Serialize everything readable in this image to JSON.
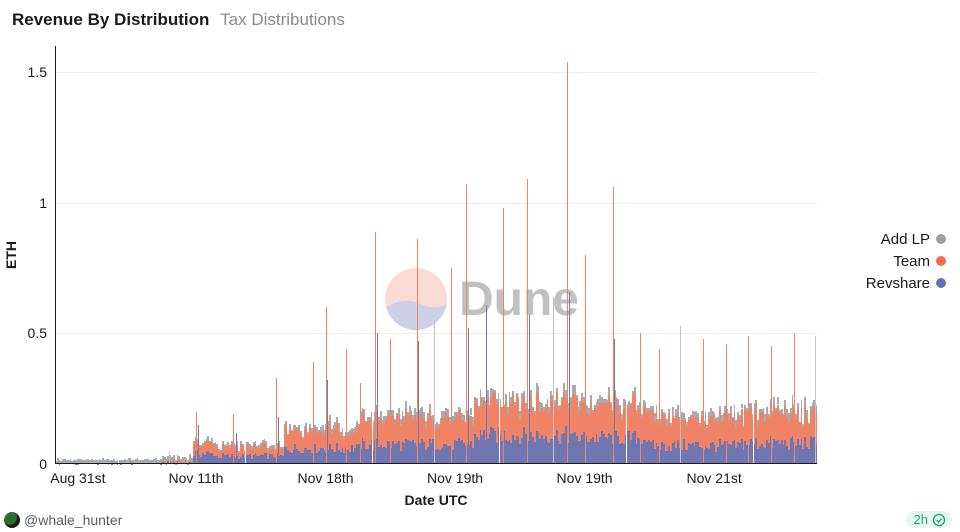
{
  "title_main": "Revenue By Distribution",
  "title_sub": "Tax Distributions",
  "y_label": "ETH",
  "x_label": "Date UTC",
  "footer_handle": "@whale_hunter",
  "stamp_text": "2h",
  "watermark_text": "Dune",
  "legend": [
    {
      "label": "Add LP",
      "color": "#9aa0a6"
    },
    {
      "label": "Team",
      "color": "#f36b4a"
    },
    {
      "label": "Revshare",
      "color": "#6b6fae"
    }
  ],
  "colors": {
    "addlp": "#a6abaf",
    "team": "#f08266",
    "revshare": "#7076b1",
    "spike_team": "#f08266",
    "spike_rev": "#7076b1",
    "spike_lp": "#bfc3c8",
    "grid": "#eceef0",
    "axis": "#1a1a1a",
    "watermark_top": "#f6b9a9",
    "watermark_bot": "#9da3cd",
    "avatar_a": "#2f6d2f",
    "avatar_b": "#1a1a1a"
  },
  "chart": {
    "ylim": [
      0,
      1.6
    ],
    "yticks": [
      0,
      0.5,
      1,
      1.5
    ],
    "xticks": [
      {
        "pos": 0.03,
        "label": "Aug 31st"
      },
      {
        "pos": 0.185,
        "label": "Nov 11th"
      },
      {
        "pos": 0.355,
        "label": "Nov 18th"
      },
      {
        "pos": 0.525,
        "label": "Nov 19th"
      },
      {
        "pos": 0.695,
        "label": "Nov 19th"
      },
      {
        "pos": 0.865,
        "label": "Nov 21st"
      }
    ],
    "n_bars": 420,
    "phases": [
      {
        "from": 0.0,
        "to": 0.14,
        "lp": 0.015,
        "rev": 0.0,
        "team": 0.0,
        "noise": 0.01
      },
      {
        "from": 0.14,
        "to": 0.18,
        "lp": 0.015,
        "rev": 0.005,
        "team": 0.005,
        "noise": 0.015
      },
      {
        "from": 0.18,
        "to": 0.21,
        "lp": 0.01,
        "rev": 0.04,
        "team": 0.04,
        "noise": 0.03
      },
      {
        "from": 0.21,
        "to": 0.3,
        "lp": 0.01,
        "rev": 0.03,
        "team": 0.035,
        "noise": 0.025
      },
      {
        "from": 0.3,
        "to": 0.4,
        "lp": 0.015,
        "rev": 0.06,
        "team": 0.07,
        "noise": 0.04
      },
      {
        "from": 0.4,
        "to": 0.55,
        "lp": 0.02,
        "rev": 0.075,
        "team": 0.095,
        "noise": 0.05
      },
      {
        "from": 0.55,
        "to": 0.68,
        "lp": 0.02,
        "rev": 0.11,
        "team": 0.13,
        "noise": 0.07
      },
      {
        "from": 0.68,
        "to": 0.78,
        "lp": 0.02,
        "rev": 0.1,
        "team": 0.12,
        "noise": 0.06
      },
      {
        "from": 0.78,
        "to": 0.9,
        "lp": 0.02,
        "rev": 0.07,
        "team": 0.1,
        "noise": 0.05
      },
      {
        "from": 0.9,
        "to": 1.0,
        "lp": 0.02,
        "rev": 0.08,
        "team": 0.11,
        "noise": 0.06
      }
    ],
    "spikes": [
      {
        "x": 0.15,
        "h": 0.045,
        "c": "lp"
      },
      {
        "x": 0.185,
        "h": 0.2,
        "c": "team"
      },
      {
        "x": 0.188,
        "h": 0.15,
        "c": "rev"
      },
      {
        "x": 0.233,
        "h": 0.19,
        "c": "team"
      },
      {
        "x": 0.238,
        "h": 0.12,
        "c": "rev"
      },
      {
        "x": 0.29,
        "h": 0.33,
        "c": "team"
      },
      {
        "x": 0.292,
        "h": 0.18,
        "c": "rev"
      },
      {
        "x": 0.338,
        "h": 0.39,
        "c": "team"
      },
      {
        "x": 0.355,
        "h": 0.6,
        "c": "team"
      },
      {
        "x": 0.357,
        "h": 0.32,
        "c": "rev"
      },
      {
        "x": 0.382,
        "h": 0.44,
        "c": "team"
      },
      {
        "x": 0.4,
        "h": 0.31,
        "c": "team"
      },
      {
        "x": 0.42,
        "h": 0.89,
        "c": "team"
      },
      {
        "x": 0.422,
        "h": 0.5,
        "c": "rev"
      },
      {
        "x": 0.44,
        "h": 0.48,
        "c": "team"
      },
      {
        "x": 0.475,
        "h": 0.86,
        "c": "team"
      },
      {
        "x": 0.477,
        "h": 0.47,
        "c": "rev"
      },
      {
        "x": 0.498,
        "h": 0.55,
        "c": "lp"
      },
      {
        "x": 0.52,
        "h": 0.75,
        "c": "team"
      },
      {
        "x": 0.54,
        "h": 1.07,
        "c": "team"
      },
      {
        "x": 0.542,
        "h": 0.52,
        "c": "rev"
      },
      {
        "x": 0.565,
        "h": 0.61,
        "c": "rev"
      },
      {
        "x": 0.588,
        "h": 0.98,
        "c": "team"
      },
      {
        "x": 0.62,
        "h": 1.09,
        "c": "team"
      },
      {
        "x": 0.622,
        "h": 0.57,
        "c": "rev"
      },
      {
        "x": 0.654,
        "h": 0.64,
        "c": "lp"
      },
      {
        "x": 0.672,
        "h": 1.54,
        "c": "team"
      },
      {
        "x": 0.674,
        "h": 0.66,
        "c": "rev"
      },
      {
        "x": 0.695,
        "h": 0.8,
        "c": "team"
      },
      {
        "x": 0.732,
        "h": 1.06,
        "c": "team"
      },
      {
        "x": 0.734,
        "h": 0.48,
        "c": "rev"
      },
      {
        "x": 0.768,
        "h": 0.5,
        "c": "team"
      },
      {
        "x": 0.792,
        "h": 0.44,
        "c": "team"
      },
      {
        "x": 0.82,
        "h": 0.53,
        "c": "lp"
      },
      {
        "x": 0.85,
        "h": 0.48,
        "c": "team"
      },
      {
        "x": 0.88,
        "h": 0.46,
        "c": "team"
      },
      {
        "x": 0.91,
        "h": 0.49,
        "c": "team"
      },
      {
        "x": 0.94,
        "h": 0.45,
        "c": "team"
      },
      {
        "x": 0.97,
        "h": 0.5,
        "c": "team"
      },
      {
        "x": 0.998,
        "h": 0.49,
        "c": "lp"
      }
    ]
  }
}
